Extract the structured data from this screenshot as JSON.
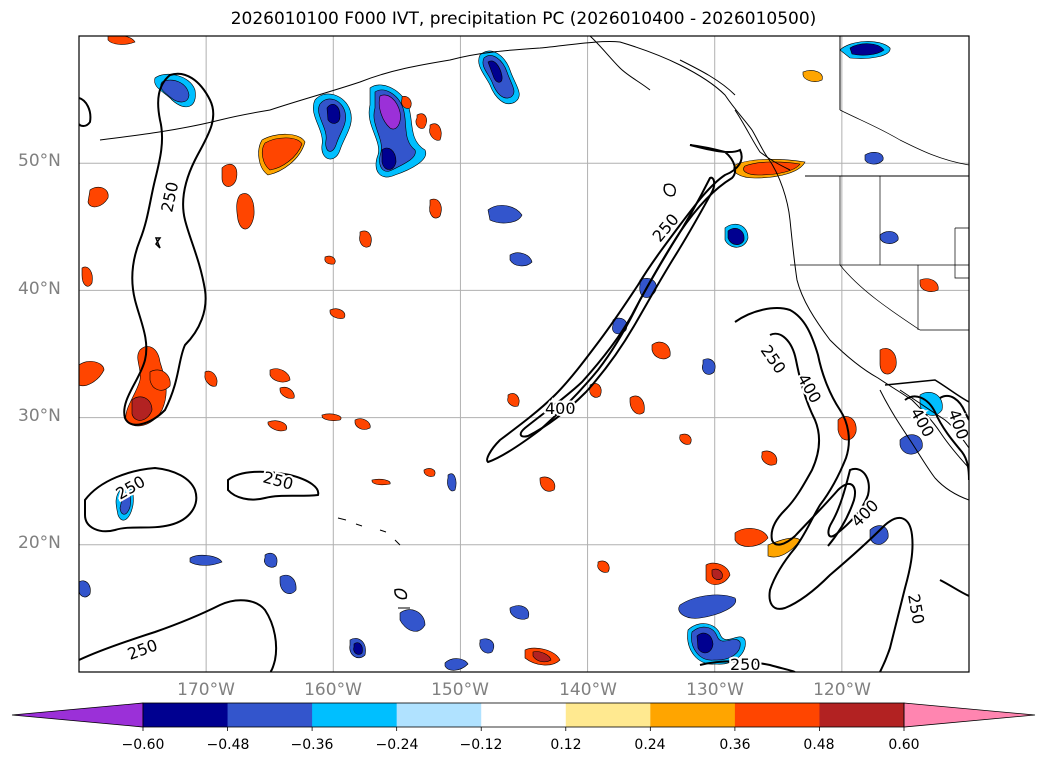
{
  "title": "2026010100 F000 IVT, precipitation PC (2026010400 - 2026010500)",
  "lat_labels": [
    "50°N",
    "40°N",
    "30°N",
    "20°N"
  ],
  "lon_labels": [
    "170°W",
    "160°W",
    "150°W",
    "140°W",
    "130°W",
    "120°W"
  ],
  "contour_labels": [
    "250",
    "250",
    "250",
    "250",
    "250",
    "250",
    "250",
    "250",
    "400",
    "400",
    "400",
    "400",
    "400"
  ],
  "colorbar": {
    "tick_labels": [
      "−0.60",
      "−0.48",
      "−0.36",
      "−0.24",
      "−0.12",
      "0.12",
      "0.24",
      "0.36",
      "0.48",
      "0.60"
    ],
    "colors": [
      "#9b30d8",
      "#000090",
      "#3355cc",
      "#00bfff",
      "#b0e2ff",
      "#ffffff",
      "#ffe990",
      "#ffa500",
      "#ff4500",
      "#b22222",
      "#ff85b0"
    ]
  },
  "chart_data": {
    "type": "map",
    "title": "2026010100 F000 IVT, precipitation PC (2026010400 - 2026010500)",
    "projection": "equirectangular",
    "lon_range": [
      -180,
      -110
    ],
    "lat_range": [
      10,
      60
    ],
    "lon_ticks": [
      -170,
      -160,
      -150,
      -140,
      -130,
      -120
    ],
    "lat_ticks": [
      20,
      30,
      40,
      50
    ],
    "ivt_contour_levels": [
      250,
      400
    ],
    "precip_pc_levels": [
      -0.6,
      -0.48,
      -0.36,
      -0.24,
      -0.12,
      0.12,
      0.24,
      0.36,
      0.48,
      0.6
    ],
    "colorbar_extend": "both",
    "colorbar_position": "bottom"
  }
}
